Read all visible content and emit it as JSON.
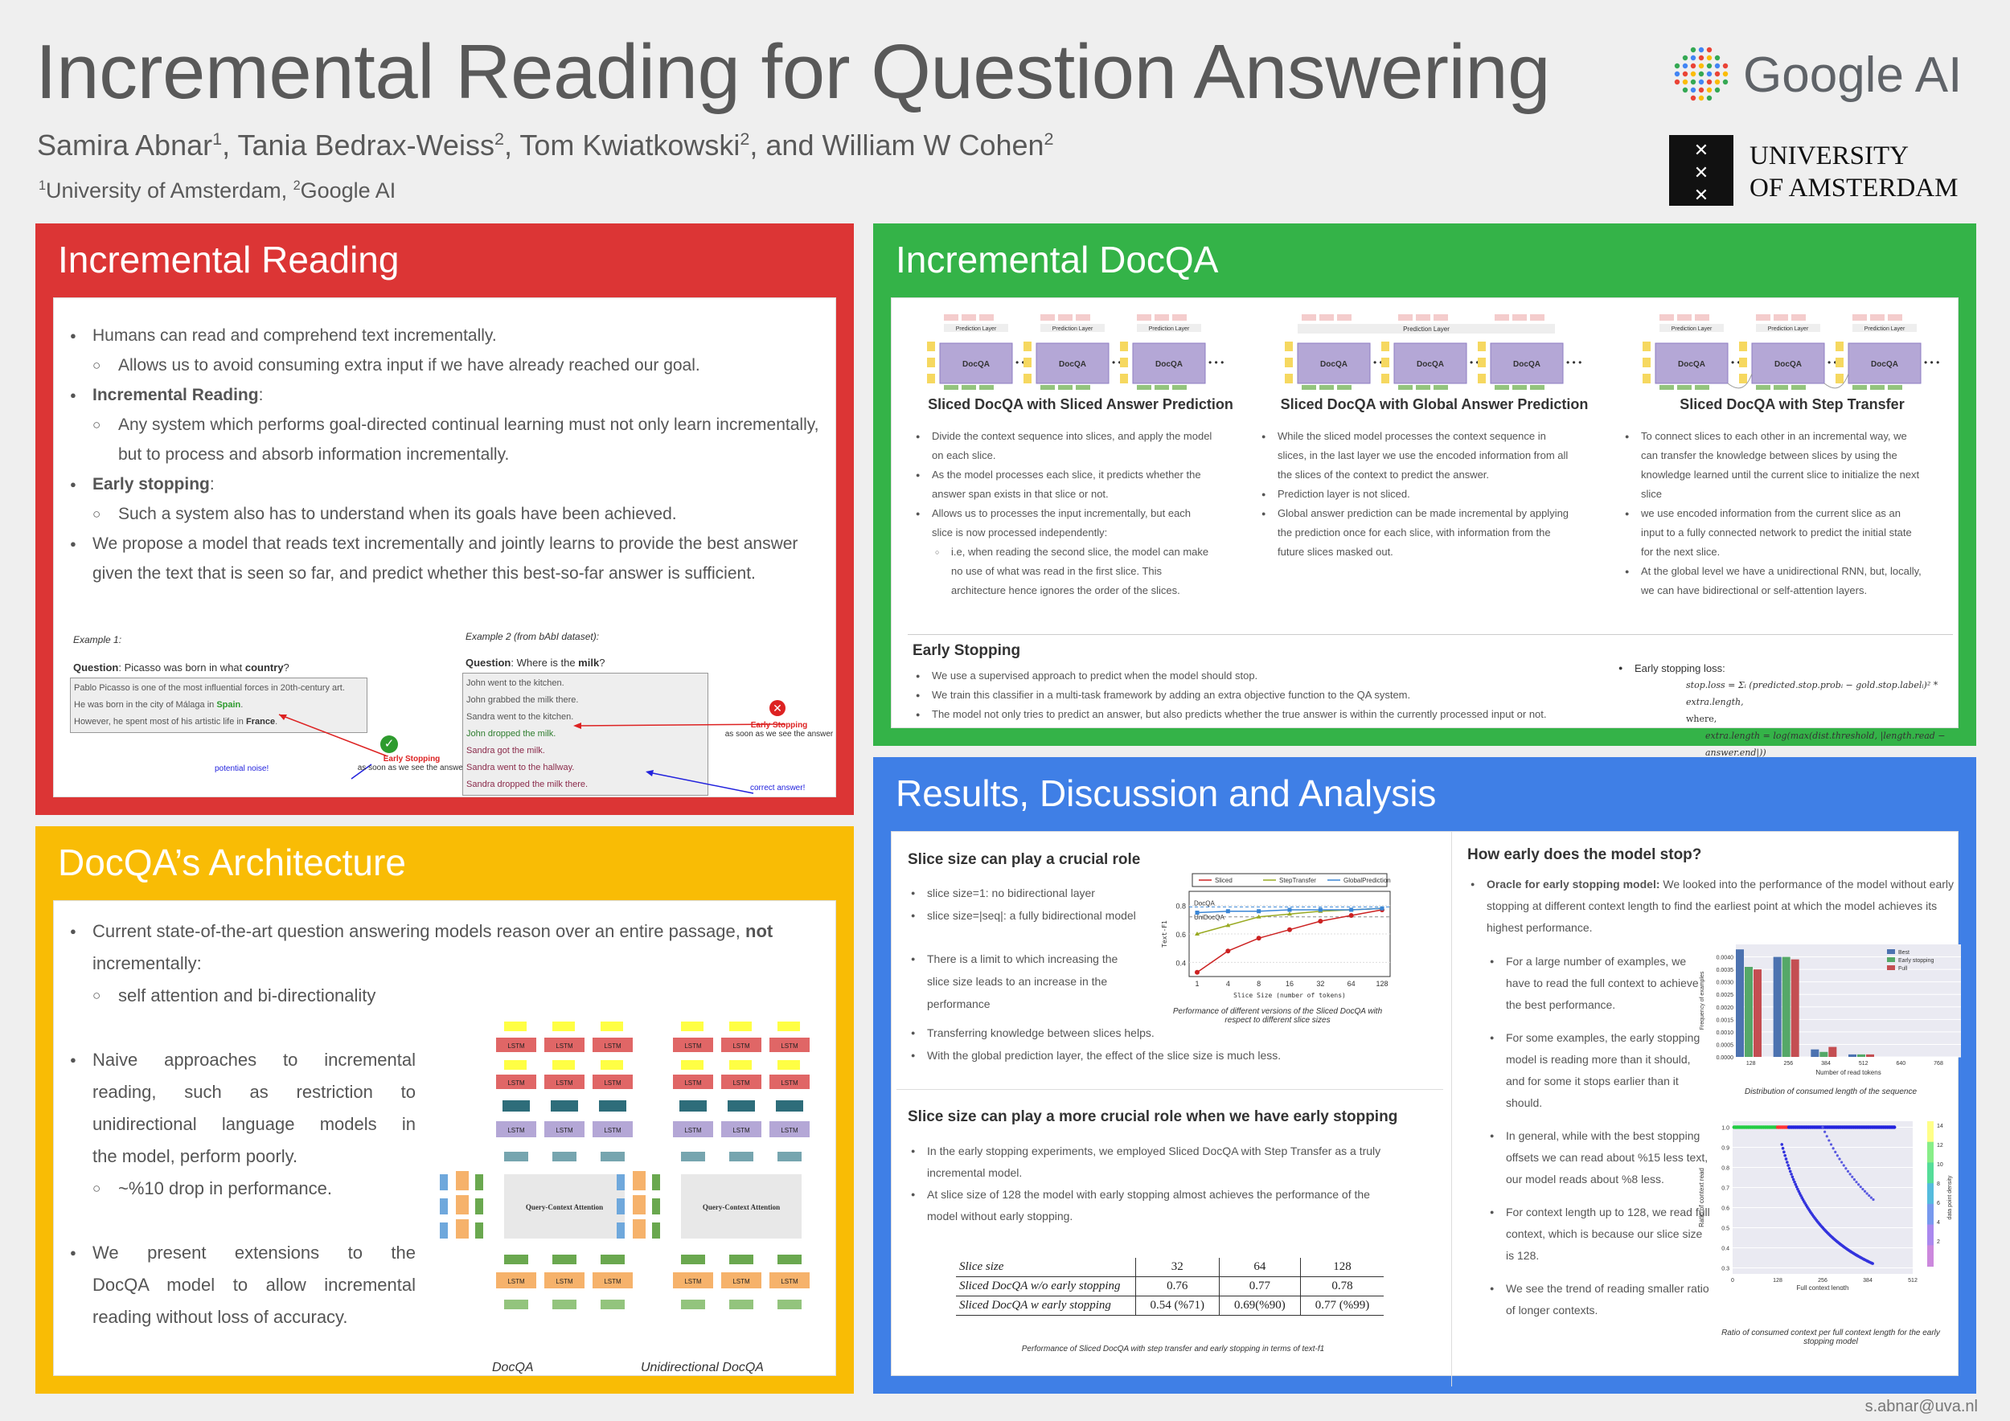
{
  "header": {
    "title": "Incremental Reading for Question Answering",
    "authors": [
      {
        "name": "Samira Abnar",
        "sup": "1"
      },
      {
        "name": "Tania Bedrax-Weiss",
        "sup": "2"
      },
      {
        "name": "Tom Kwiatkowski",
        "sup": "2"
      },
      {
        "name": "William W Cohen",
        "sup": "2"
      }
    ],
    "affil_1": "University of Amsterdam, ",
    "affil_2": "Google AI",
    "google_logo": "Google AI",
    "uva_line1": "UNIVERSITY",
    "uva_line2": "OF AMSTERDAM"
  },
  "incremental_reading": {
    "heading": "Incremental Reading",
    "b1": "Humans can read and comprehend text incrementally.",
    "b1a": "Allows us to avoid consuming extra  input if we have already reached our goal.",
    "b2": "Incremental Reading",
    "b2a": "Any system which performs goal-directed continual learning must not only learn incrementally,",
    "b2b": "but to process and absorb information incrementally.",
    "b3": "Early stopping",
    "b3a": "Such a system also has to understand when its goals have been achieved.",
    "b4": "We propose a  model that reads text incrementally and jointly learns to provide the best answer",
    "b4b": "given the text that is seen so far, and predict whether this best-so-far answer is sufficient.",
    "ex1_label": "Example 1:",
    "ex1_q": "Picasso was born in what ",
    "ex1_qb": "country",
    "ex1_lines": [
      "Pablo Picasso is one of the most influential forces in 20th-century art.",
      "He was born in the city of Málaga in ",
      "However, he spent most of his artistic life in "
    ],
    "ex1_spain": "Spain",
    "ex1_france": "France",
    "ex2_label": "Example 2 (from bAbI dataset):",
    "ex2_q": "Where is the ",
    "ex2_qb": "milk",
    "question": "Question",
    "ex2_lines": [
      "John went to the kitchen.",
      "John grabbed the milk there.",
      "Sandra went to the kitchen.",
      "John dropped the milk.",
      "Sandra got the milk.",
      "Sandra went to the hallway.",
      "Sandra dropped the milk there."
    ],
    "early_stop": "Early Stopping",
    "early_sub": "as soon as we see the answer",
    "noise": "potential noise!",
    "correct": "correct answer!"
  },
  "architecture": {
    "heading": "DocQA’s Architecture",
    "b1": "Current state-of-the-art question answering models reason over an entire passage, ",
    "b1b": "not",
    "b1c": "incrementally:",
    "b1a": "self attention and bi-directionality",
    "b2": [
      "Naive approaches to incremental",
      "reading, such as restriction to",
      "unidirectional language models in",
      "the model, perform poorly."
    ],
    "b2a": "~%10 drop in performance.",
    "b3": [
      "We present extensions to the",
      "DocQA model to allow incremental",
      "reading without loss of accuracy."
    ],
    "cap1": "DocQA",
    "cap2": "Unidirectional DocQA",
    "attn": "Query-Context Attention",
    "lstm": "LSTM"
  },
  "docqa": {
    "heading": "Incremental DocQA",
    "d1": "Sliced DocQA with Sliced Answer Prediction",
    "d2": "Sliced DocQA with Global Answer Prediction",
    "d3": "Sliced DocQA with Step Transfer",
    "box": "DocQA",
    "pred": "Prediction Layer",
    "c1": [
      "Divide the context sequence into slices, and apply the model",
      "on each slice.",
      "As the model processes each slice, it predicts whether the",
      "answer span exists in that slice or not.",
      "Allows us to processes the input incrementally, but each",
      "slice is now processed independently:",
      "i.e, when reading the second slice, the model can make",
      "no use of what was read in the first slice. This",
      "architecture hence ignores the order of the slices."
    ],
    "c2": [
      "While the sliced model processes the context sequence in",
      "slices, in the last layer we use the encoded information from all",
      "the slices of the context to predict the answer.",
      "Prediction layer is not sliced.",
      "Global answer prediction can be made incremental by applying",
      "the prediction once for each slice, with information from the",
      "future slices masked out."
    ],
    "c3": [
      "To connect slices to each other in an incremental way, we",
      "can transfer the knowledge between slices by using the",
      "knowledge learned until the current slice to initialize the next",
      "slice",
      "we use encoded information from the current slice as an",
      "input to a fully connected network to predict the initial state",
      "for the next slice.",
      "At the global level we have a unidirectional RNN, but, locally,",
      "we can have bidirectional or self-attention layers."
    ],
    "es_head": "Early Stopping",
    "es": [
      "We use a supervised approach to predict when the model should stop.",
      "We train this classifier in a multi-task framework by adding an extra objective function to the QA system.",
      "The model not only tries to predict an answer, but also predicts whether the true answer is within the currently processed input or not."
    ],
    "loss_label": "Early stopping loss:",
    "loss_eq": "stop.loss = Σᵢ (predicted.stop.probᵢ − gold.stop.labelᵢ)² * extra.length,",
    "where": "where,",
    "extra_eq": "extra.length = log(max(dist.threshold, |length.read − answer.end|))"
  },
  "results": {
    "heading": "Results,  Discussion and Analysis",
    "s1_head": "Slice size can play a crucial role",
    "s1": [
      "slice size=1:  no bidirectional layer",
      "slice size=|seq|: a fully bidirectional model"
    ],
    "s1b": [
      "There is a limit to which increasing the",
      "slice size leads to an increase in the",
      "performance"
    ],
    "s1c": [
      "Transferring knowledge between slices helps.",
      "With the global prediction layer, the effect of the slice size is much less."
    ],
    "chart1_caption": "Performance of different versions of the Sliced DocQA with",
    "chart1_caption2": "respect to different slice sizes",
    "s2_head": "Slice size can play a more crucial role when we have early stopping",
    "s2": [
      "In the early stopping experiments, we employed Sliced DocQA with Step Transfer as a truly",
      "incremental model.",
      "At slice size of 128 the model with early stopping almost achieves the performance of the",
      "model without early stopping."
    ],
    "table": {
      "header": [
        "Slice size",
        "32",
        "64",
        "128"
      ],
      "rows": [
        [
          "Sliced DocQA w/o early stopping",
          "0.76",
          "0.77",
          "0.78"
        ],
        [
          "Sliced DocQA w early stopping",
          "0.54 (%71)",
          "0.69(%90)",
          "0.77 (%99)"
        ]
      ]
    },
    "table_caption": "Performance of Sliced DocQA with step transfer and early stopping in terms of text-f1",
    "s3_head": "How early does the model stop?",
    "s3_lead": "Oracle for early stopping model:",
    "s3_lead_rest": [
      " We looked into the performance of the model without early",
      "stopping at different context length to find the earliest point at which the model achieves its",
      "highest performance."
    ],
    "s3_b": [
      [
        "For a large number of examples, we",
        "have to read the full context to achieve",
        "the best performance."
      ],
      [
        "For some examples, the early stopping",
        "model is reading more than it should,",
        "and for some it stops earlier than it",
        "should."
      ],
      [
        "In general, while with the best stopping",
        "offsets we can read about %15 less text,",
        "our model reads about %8 less."
      ],
      [
        "For context length up to 128, we read full",
        "context, which is because our slice size",
        "is 128."
      ],
      [
        "We see the trend of reading smaller ratio",
        "of longer contexts."
      ]
    ],
    "chart2_caption": "Distribution of consumed length of the sequence",
    "chart3_caption": "Ratio of consumed context per full context length for the early",
    "chart3_caption2": "stopping model",
    "email": "s.abnar@uva.nl"
  },
  "chart_data": [
    {
      "type": "line",
      "xlabel": "Slice Size (number of tokens)",
      "ylabel": "Text-F1",
      "categories": [
        "1",
        "4",
        "8",
        "16",
        "32",
        "64",
        "128"
      ],
      "ylim": [
        0.3,
        0.9
      ],
      "yticks": [
        "0.4",
        "0.6",
        "0.8"
      ],
      "series": [
        {
          "name": "Sliced",
          "values": [
            0.33,
            0.48,
            0.57,
            0.63,
            0.69,
            0.73,
            0.77
          ],
          "color": "#cc2222"
        },
        {
          "name": "StepTransfer",
          "values": [
            0.6,
            0.66,
            0.72,
            0.74,
            0.76,
            0.77,
            0.78
          ],
          "color": "#99aa22"
        },
        {
          "name": "GlobalPrediction",
          "values": [
            0.75,
            0.76,
            0.76,
            0.77,
            0.77,
            0.77,
            0.78
          ],
          "color": "#3a86d6"
        }
      ],
      "annotations": [
        "DocQA",
        "UniDocQA"
      ],
      "legend": "top"
    },
    {
      "type": "bar",
      "xlabel": "Number of read tokens",
      "ylabel": "Frequency of examples",
      "categories": [
        "128",
        "256",
        "384",
        "512",
        "640",
        "768"
      ],
      "ylim": [
        0,
        0.0045
      ],
      "yticks": [
        "0.0040",
        "0.0035",
        "0.0030",
        "0.0025",
        "0.0020",
        "0.0015",
        "0.0010",
        "0.0005",
        "0.0000"
      ],
      "series": [
        {
          "name": "Best",
          "values": [
            0.0043,
            0.004,
            0.0003,
            0.0001,
            0.0,
            0.0
          ],
          "color": "#4c72b0"
        },
        {
          "name": "Early stopping",
          "values": [
            0.0036,
            0.004,
            0.0002,
            0.0001,
            0.0,
            0.0
          ],
          "color": "#55a868"
        },
        {
          "name": "Full",
          "values": [
            0.0035,
            0.0039,
            0.0004,
            0.0001,
            0.0,
            0.0
          ],
          "color": "#c44e52"
        }
      ],
      "legend": "top-right"
    },
    {
      "type": "scatter",
      "xlabel": "Full context length",
      "ylabel": "Ratio of context read",
      "colorbar_label": "data point density",
      "xticks": [
        "0",
        "128",
        "256",
        "384",
        "512"
      ],
      "yticks": [
        "1.0",
        "0.9",
        "0.8",
        "0.7",
        "0.6",
        "0.5",
        "0.4",
        "0.3"
      ],
      "cticks": [
        "14",
        "12",
        "10",
        "8",
        "6",
        "4",
        "2"
      ],
      "xlim": [
        0,
        512
      ],
      "ylim": [
        0.27,
        1.03
      ]
    }
  ]
}
